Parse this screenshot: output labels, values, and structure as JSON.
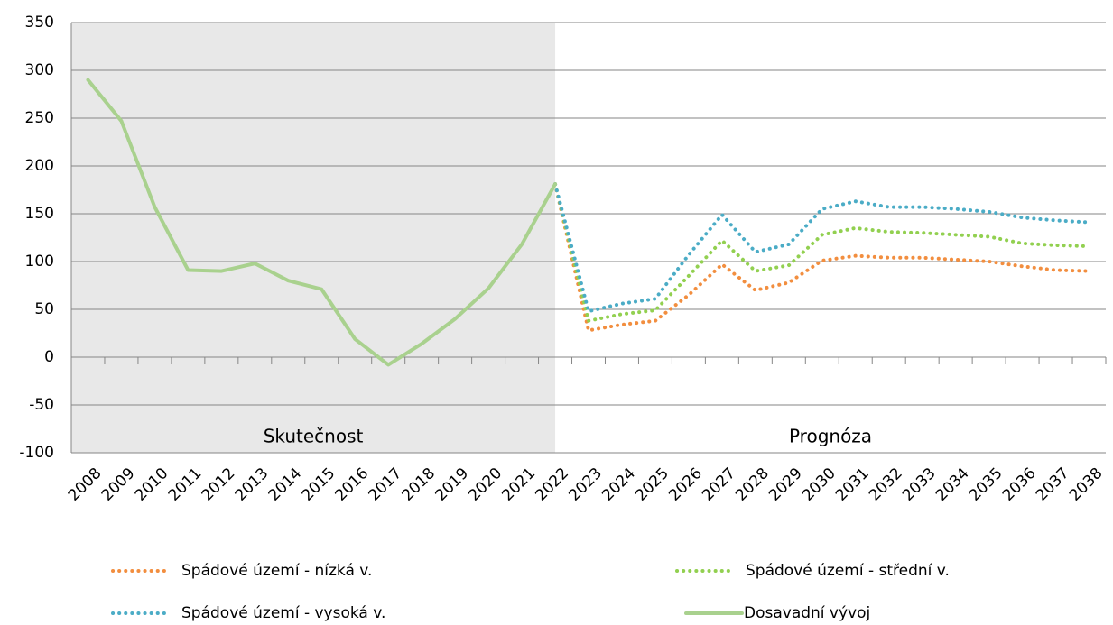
{
  "chart_data": {
    "type": "line",
    "categories": [
      "2008",
      "2009",
      "2010",
      "2011",
      "2012",
      "2013",
      "2014",
      "2015",
      "2016",
      "2017",
      "2018",
      "2019",
      "2020",
      "2021",
      "2022",
      "2023",
      "2024",
      "2025",
      "2026",
      "2027",
      "2028",
      "2029",
      "2030",
      "2031",
      "2032",
      "2033",
      "2034",
      "2035",
      "2036",
      "2037",
      "2038"
    ],
    "series": [
      {
        "name": "Spádové území - nízká v.",
        "color": "#f28e3f",
        "style": "dotted",
        "values": [
          null,
          null,
          null,
          null,
          null,
          null,
          null,
          null,
          null,
          null,
          null,
          null,
          null,
          null,
          181,
          28,
          34,
          38,
          65,
          97,
          70,
          78,
          101,
          106,
          104,
          104,
          102,
          100,
          95,
          91,
          90
        ]
      },
      {
        "name": "Spádové území - střední v.",
        "color": "#92d050",
        "style": "dotted",
        "values": [
          null,
          null,
          null,
          null,
          null,
          null,
          null,
          null,
          null,
          null,
          null,
          null,
          null,
          null,
          181,
          38,
          45,
          49,
          85,
          122,
          90,
          96,
          128,
          135,
          131,
          130,
          128,
          126,
          119,
          117,
          116
        ]
      },
      {
        "name": "Spádové území - vysoká v.",
        "color": "#4bacc6",
        "style": "dotted",
        "values": [
          null,
          null,
          null,
          null,
          null,
          null,
          null,
          null,
          null,
          null,
          null,
          null,
          null,
          null,
          181,
          48,
          56,
          61,
          107,
          149,
          110,
          118,
          155,
          163,
          157,
          157,
          155,
          152,
          146,
          143,
          141
        ]
      },
      {
        "name": "Dosavadní vývoj",
        "color": "#a9d18e",
        "style": "solid",
        "values": [
          290,
          247,
          157,
          91,
          90,
          98,
          80,
          71,
          19,
          -8,
          14,
          40,
          72,
          118,
          181,
          null,
          null,
          null,
          null,
          null,
          null,
          null,
          null,
          null,
          null,
          null,
          null,
          null,
          null,
          null,
          null
        ]
      }
    ],
    "annotations": [
      "Skutečnost",
      "Prognóza"
    ],
    "ylim": [
      -100,
      350
    ],
    "yticks": [
      -100,
      -50,
      0,
      50,
      100,
      150,
      200,
      250,
      300,
      350
    ],
    "grid": true
  }
}
